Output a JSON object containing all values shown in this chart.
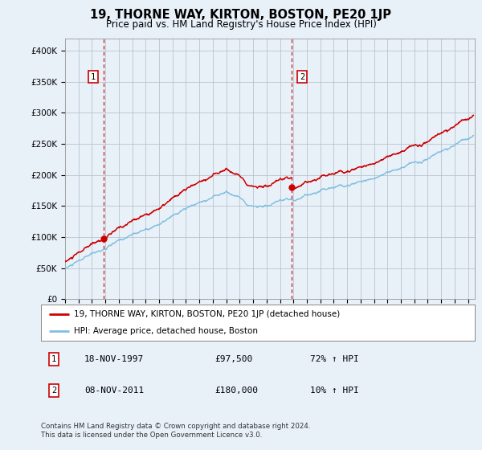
{
  "title": "19, THORNE WAY, KIRTON, BOSTON, PE20 1JP",
  "subtitle": "Price paid vs. HM Land Registry's House Price Index (HPI)",
  "ylabel_ticks": [
    "£0",
    "£50K",
    "£100K",
    "£150K",
    "£200K",
    "£250K",
    "£300K",
    "£350K",
    "£400K"
  ],
  "ytick_values": [
    0,
    50000,
    100000,
    150000,
    200000,
    250000,
    300000,
    350000,
    400000
  ],
  "ylim": [
    0,
    420000
  ],
  "xlim_start": 1995.0,
  "xlim_end": 2025.5,
  "hpi_color": "#7fbfdf",
  "price_color": "#cc0000",
  "sale1_year": 1997.88,
  "sale1_price": 97500,
  "sale2_year": 2011.85,
  "sale2_price": 180000,
  "legend_label1": "19, THORNE WAY, KIRTON, BOSTON, PE20 1JP (detached house)",
  "legend_label2": "HPI: Average price, detached house, Boston",
  "note1_num": "1",
  "note1_date": "18-NOV-1997",
  "note1_price": "£97,500",
  "note1_hpi": "72% ↑ HPI",
  "note2_num": "2",
  "note2_date": "08-NOV-2011",
  "note2_price": "£180,000",
  "note2_hpi": "10% ↑ HPI",
  "footer": "Contains HM Land Registry data © Crown copyright and database right 2024.\nThis data is licensed under the Open Government Licence v3.0.",
  "bg_color": "#e8f0f8",
  "plot_bg_color": "#e8f0f8"
}
